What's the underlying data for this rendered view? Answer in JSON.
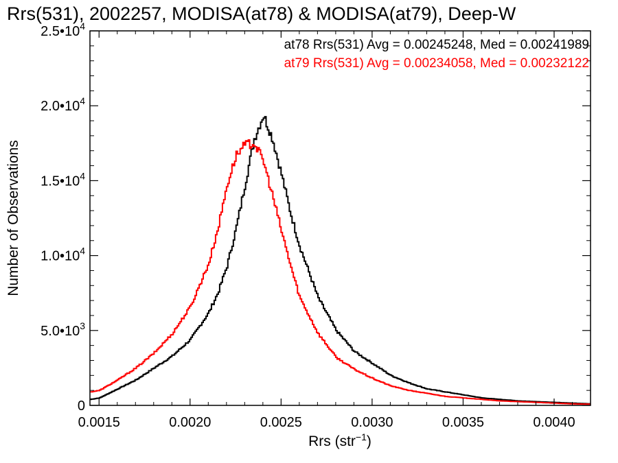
{
  "chart_data": {
    "type": "line",
    "title": "Rrs(531), 2002257, MODISA(at78) & MODISA(at79), Deep-W",
    "xlabel": "Rrs (str⁻¹)",
    "ylabel": "Number of Observations",
    "xlim": [
      0.00145,
      0.0042
    ],
    "ylim": [
      0,
      25000
    ],
    "x_ticks": [
      {
        "value": 0.0015,
        "label": "0.0015"
      },
      {
        "value": 0.002,
        "label": "0.0020"
      },
      {
        "value": 0.0025,
        "label": "0.0025"
      },
      {
        "value": 0.003,
        "label": "0.0030"
      },
      {
        "value": 0.0035,
        "label": "0.0035"
      },
      {
        "value": 0.004,
        "label": "0.0040"
      }
    ],
    "y_ticks": [
      {
        "value": 0,
        "mant": "0",
        "exp": ""
      },
      {
        "value": 5000,
        "mant": "5.0•10",
        "exp": "3"
      },
      {
        "value": 10000,
        "mant": "1.0•10",
        "exp": "4"
      },
      {
        "value": 15000,
        "mant": "1.5•10",
        "exp": "4"
      },
      {
        "value": 20000,
        "mant": "2.0•10",
        "exp": "4"
      },
      {
        "value": 25000,
        "mant": "2.5•10",
        "exp": "4"
      }
    ],
    "annotations": [
      {
        "text": "at78 Rrs(531) Avg = 0.00245248, Med = 0.00241989",
        "color": "#000000"
      },
      {
        "text": "at79 Rrs(531) Avg = 0.00234058, Med = 0.00232122",
        "color": "#ff0000"
      }
    ],
    "series": [
      {
        "color": "#000000",
        "x": [
          0.00145,
          0.0015,
          0.0016,
          0.0017,
          0.0018,
          0.0019,
          0.002,
          0.0021,
          0.00215,
          0.0022,
          0.00225,
          0.0023,
          0.00235,
          0.0024,
          0.00245,
          0.0025,
          0.00255,
          0.0026,
          0.0027,
          0.0028,
          0.0029,
          0.003,
          0.0031,
          0.0032,
          0.0033,
          0.0034,
          0.0035,
          0.0036,
          0.0037,
          0.0038,
          0.0039,
          0.004,
          0.0041,
          0.0042
        ],
        "y": [
          400,
          500,
          1100,
          1700,
          2500,
          3300,
          4400,
          6200,
          7500,
          9300,
          11800,
          14800,
          17800,
          19400,
          17800,
          15400,
          12800,
          10600,
          7200,
          5000,
          3600,
          2800,
          2000,
          1500,
          1100,
          900,
          700,
          500,
          400,
          300,
          250,
          200,
          150,
          100
        ]
      },
      {
        "color": "#ff0000",
        "x": [
          0.00145,
          0.0015,
          0.0016,
          0.0017,
          0.0018,
          0.0019,
          0.002,
          0.0021,
          0.00215,
          0.0022,
          0.00225,
          0.0023,
          0.00235,
          0.0024,
          0.00245,
          0.0025,
          0.00255,
          0.0026,
          0.0027,
          0.0028,
          0.0029,
          0.003,
          0.0031,
          0.0032,
          0.0033,
          0.0034,
          0.0035,
          0.0036,
          0.0037,
          0.0038,
          0.0039,
          0.004,
          0.0041,
          0.0042
        ],
        "y": [
          900,
          1000,
          1700,
          2500,
          3500,
          4800,
          6600,
          9500,
          11800,
          14700,
          16700,
          17400,
          17500,
          16300,
          14000,
          11600,
          9300,
          7200,
          4800,
          3200,
          2400,
          1800,
          1300,
          1000,
          800,
          600,
          500,
          400,
          300,
          250,
          200,
          150,
          100,
          80
        ]
      }
    ]
  }
}
